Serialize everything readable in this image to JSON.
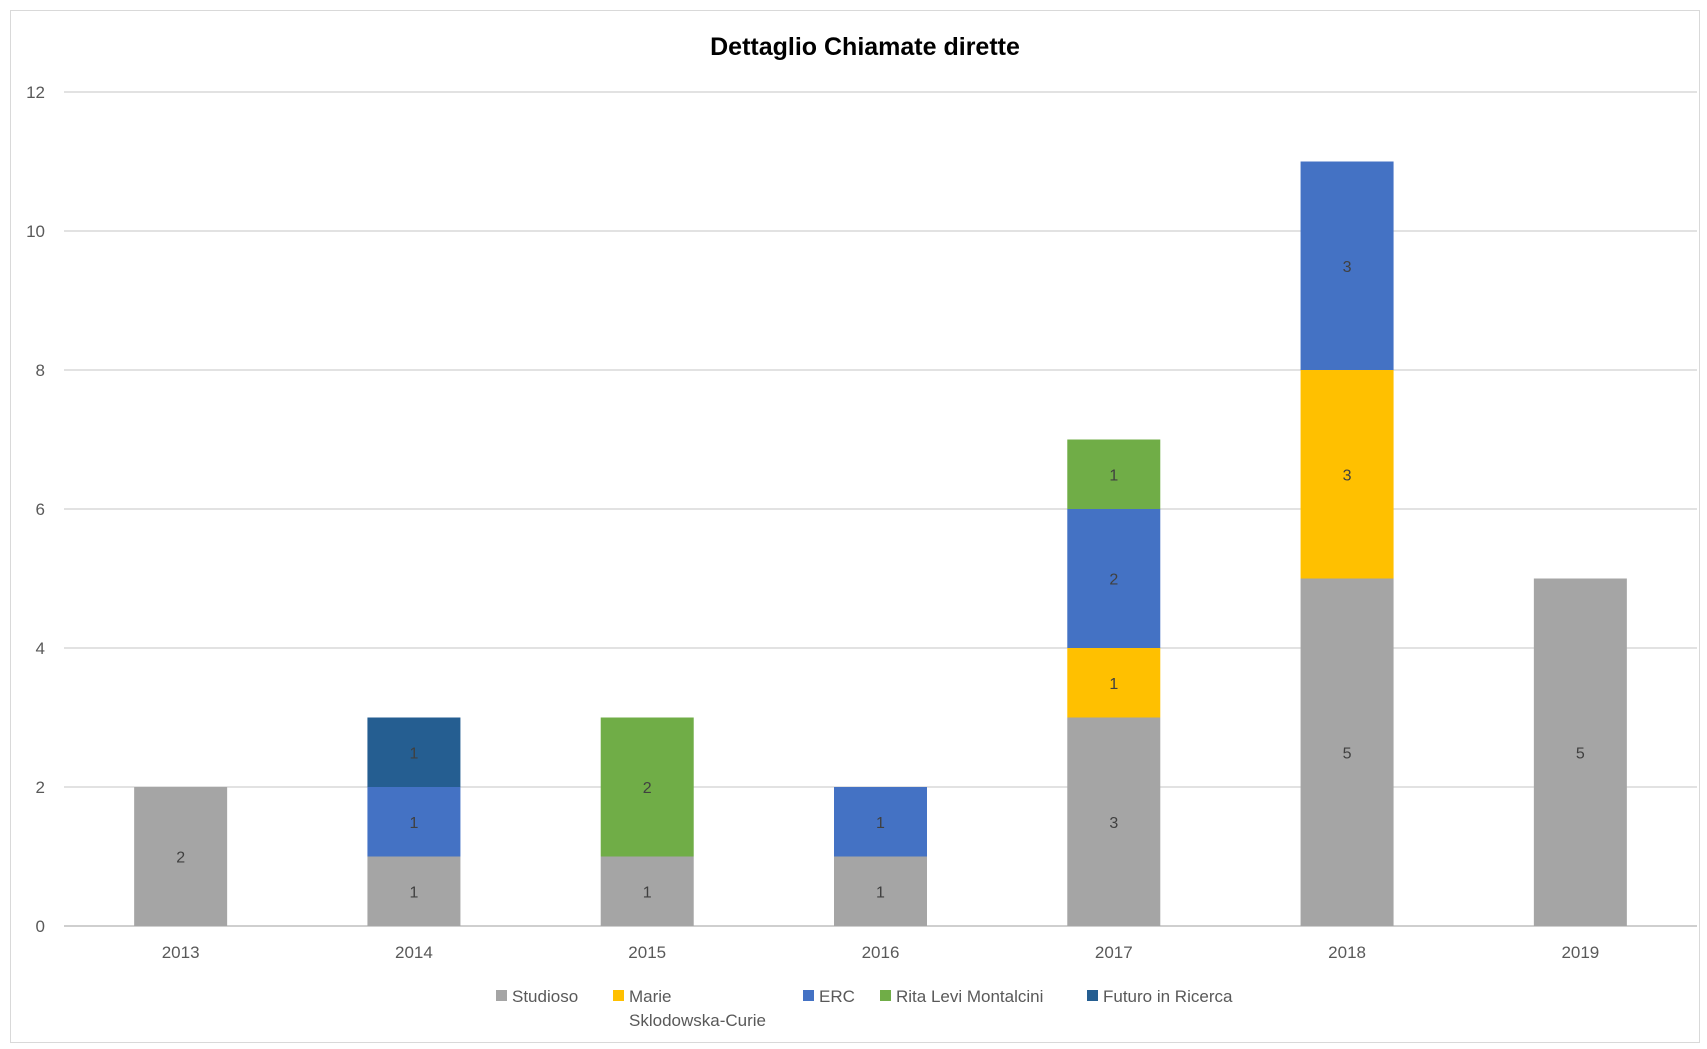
{
  "chart_data": {
    "type": "bar",
    "stacked": true,
    "title": "Dettaglio Chiamate dirette",
    "xlabel": "",
    "ylabel": "",
    "ylim": [
      0,
      12
    ],
    "yticks": [
      0,
      2,
      4,
      6,
      8,
      10,
      12
    ],
    "grid": true,
    "legend_position": "bottom",
    "categories": [
      "2013",
      "2014",
      "2015",
      "2016",
      "2017",
      "2018",
      "2019"
    ],
    "series": [
      {
        "name": "Studioso",
        "color": "#a5a5a5",
        "values": [
          2,
          1,
          1,
          1,
          3,
          5,
          5
        ]
      },
      {
        "name": "Marie Sklodowska-Curie",
        "color": "#ffc000",
        "values": [
          0,
          0,
          0,
          0,
          1,
          3,
          0
        ]
      },
      {
        "name": "ERC",
        "color": "#4472c4",
        "values": [
          0,
          1,
          0,
          1,
          2,
          3,
          0
        ]
      },
      {
        "name": "Rita Levi Montalcini",
        "color": "#70ad47",
        "values": [
          0,
          0,
          2,
          0,
          1,
          0,
          0
        ]
      },
      {
        "name": "Futuro in Ricerca",
        "color": "#255e91",
        "values": [
          0,
          1,
          0,
          0,
          0,
          0,
          0
        ]
      }
    ]
  }
}
